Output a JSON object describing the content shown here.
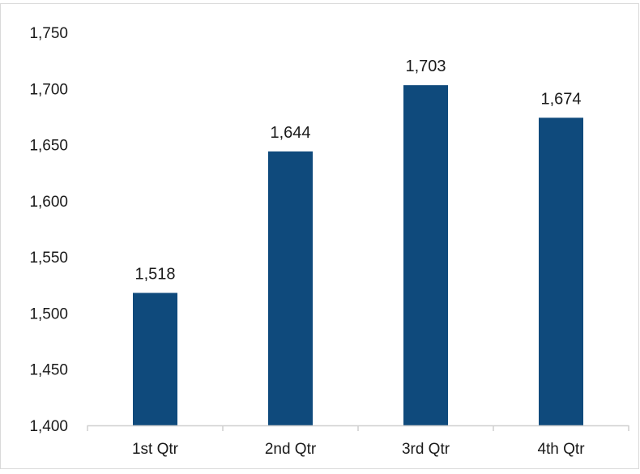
{
  "chart_data": {
    "type": "bar",
    "title": "",
    "xlabel": "",
    "ylabel": "",
    "categories": [
      "1st Qtr",
      "2nd Qtr",
      "3rd Qtr",
      "4th Qtr"
    ],
    "values": [
      1518,
      1644,
      1703,
      1674
    ],
    "data_labels": [
      "1,518",
      "1,644",
      "1,703",
      "1,674"
    ],
    "ylim": [
      1400,
      1750
    ],
    "yticks": [
      1400,
      1450,
      1500,
      1550,
      1600,
      1650,
      1700,
      1750
    ],
    "ytick_labels": [
      "1,400",
      "1,450",
      "1,500",
      "1,550",
      "1,600",
      "1,650",
      "1,700",
      "1,750"
    ],
    "grid": false,
    "legend": "none",
    "colors": {
      "bar": "#0f4a7c",
      "axis": "#cfcfcf",
      "border": "#d9d9d9"
    }
  }
}
